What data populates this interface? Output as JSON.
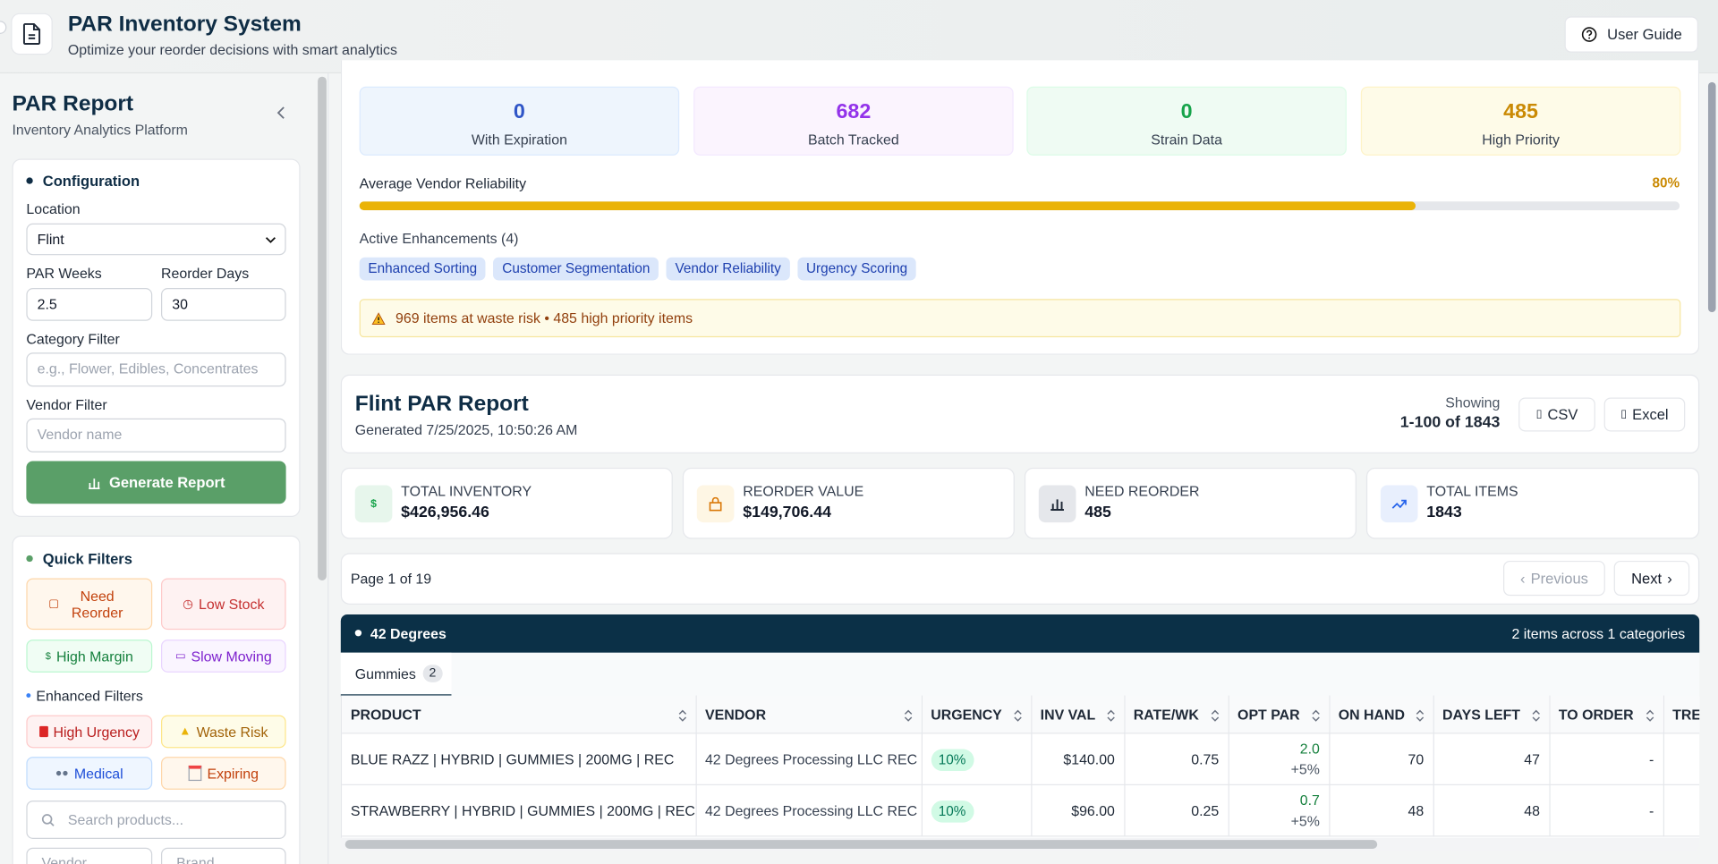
{
  "header": {
    "title": "PAR Inventory System",
    "subtitle": "Optimize your reorder decisions with smart analytics",
    "user_guide": "User Guide"
  },
  "sidebar": {
    "title": "PAR Report",
    "subtitle": "Inventory Analytics Platform",
    "configuration": {
      "heading": "Configuration",
      "location_label": "Location",
      "location": "Flint",
      "par_weeks_label": "PAR Weeks",
      "par_weeks": "2.5",
      "reorder_days_label": "Reorder Days",
      "reorder_days": "30",
      "category_label": "Category Filter",
      "category_placeholder": "e.g., Flower, Edibles, Concentrates",
      "vendor_label": "Vendor Filter",
      "vendor_placeholder": "Vendor name",
      "generate": "Generate Report"
    },
    "quick_filters": {
      "heading": "Quick Filters",
      "filters": [
        "Need Reorder",
        "Low Stock",
        "High Margin",
        "Slow Moving"
      ],
      "enhanced_heading": "Enhanced Filters",
      "enhanced": [
        "High Urgency",
        "Waste Risk",
        "Medical",
        "Expiring"
      ],
      "search_placeholder": "Search products...",
      "vendor_placeholder": "Vendor",
      "brand_placeholder": "Brand"
    }
  },
  "overview": {
    "stats": [
      {
        "value": 0,
        "label": "With Expiration"
      },
      {
        "value": 682,
        "label": "Batch Tracked"
      },
      {
        "value": 0,
        "label": "Strain Data"
      },
      {
        "value": 485,
        "label": "High Priority"
      }
    ],
    "reliability_label": "Average Vendor Reliability",
    "reliability": 80,
    "reliability_text": "80%",
    "enhancements_label": "Active Enhancements (4)",
    "enhancements": [
      "Enhanced Sorting",
      "Customer Segmentation",
      "Vendor Reliability",
      "Urgency Scoring"
    ],
    "alert": "969 items at waste risk • 485 high priority items"
  },
  "report": {
    "title": "Flint PAR Report",
    "generated": "Generated 7/25/2025, 10:50:26 AM",
    "showing_label": "Showing",
    "showing": "1-100 of 1843",
    "csv": "CSV",
    "excel": "Excel"
  },
  "summary": [
    {
      "label": "TOTAL INVENTORY",
      "value": "$426,956.46"
    },
    {
      "label": "REORDER VALUE",
      "value": "$149,706.44"
    },
    {
      "label": "NEED REORDER",
      "value": 485
    },
    {
      "label": "TOTAL ITEMS",
      "value": 1843
    }
  ],
  "pagination": {
    "page": "Page 1 of 19",
    "previous": "Previous",
    "next": "Next"
  },
  "group": {
    "name": "42 Degrees",
    "summary": "2 items across 1 categories",
    "tab": "Gummies",
    "tab_count": 2
  },
  "table": {
    "columns": [
      "PRODUCT",
      "VENDOR",
      "URGENCY",
      "INV VAL",
      "RATE/WK",
      "OPT PAR",
      "ON HAND",
      "DAYS LEFT",
      "TO ORDER",
      "TRE"
    ],
    "rows": [
      {
        "product": "BLUE RAZZ | HYBRID | GUMMIES | 200MG | REC",
        "vendor": "42 Degrees Processing LLC REC",
        "urgency": "10%",
        "inv_val": "$140.00",
        "rate_wk": "0.75",
        "opt_par": "2.0",
        "opt_par_change": "+5%",
        "on_hand": "70",
        "days_left": "47",
        "to_order": "-"
      },
      {
        "product": "STRAWBERRY | HYBRID | GUMMIES | 200MG | REC",
        "vendor": "42 Degrees Processing LLC REC",
        "urgency": "10%",
        "inv_val": "$96.00",
        "rate_wk": "0.25",
        "opt_par": "0.7",
        "opt_par_change": "+5%",
        "on_hand": "48",
        "days_left": "48",
        "to_order": "-"
      }
    ]
  }
}
